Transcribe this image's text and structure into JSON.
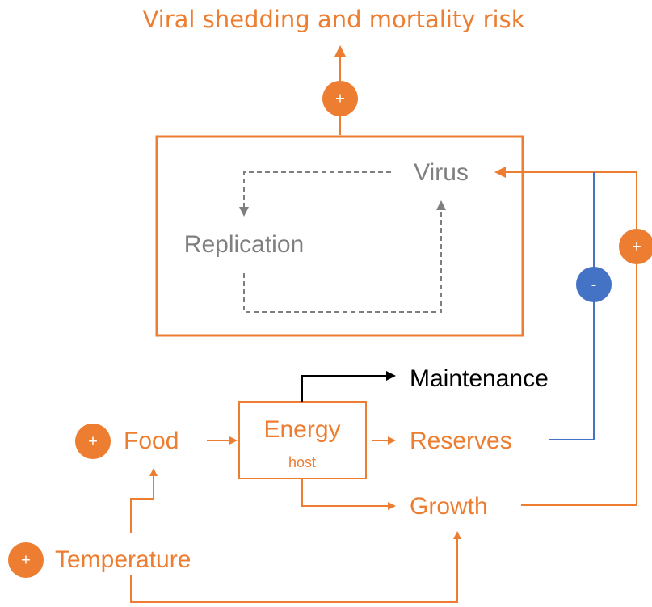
{
  "title": "Viral shedding and mortality risk",
  "nodes": {
    "virus": "Virus",
    "replication": "Replication",
    "maintenance": "Maintenance",
    "energy": {
      "label": "Energy",
      "sublabel": "host"
    },
    "reserves": "Reserves",
    "growth": "Growth",
    "food": "Food",
    "temperature": "Temperature"
  },
  "signs": {
    "shedding": "+",
    "growth_virus": "+",
    "reserves_virus": "-",
    "food": "+",
    "temperature": "+"
  }
}
